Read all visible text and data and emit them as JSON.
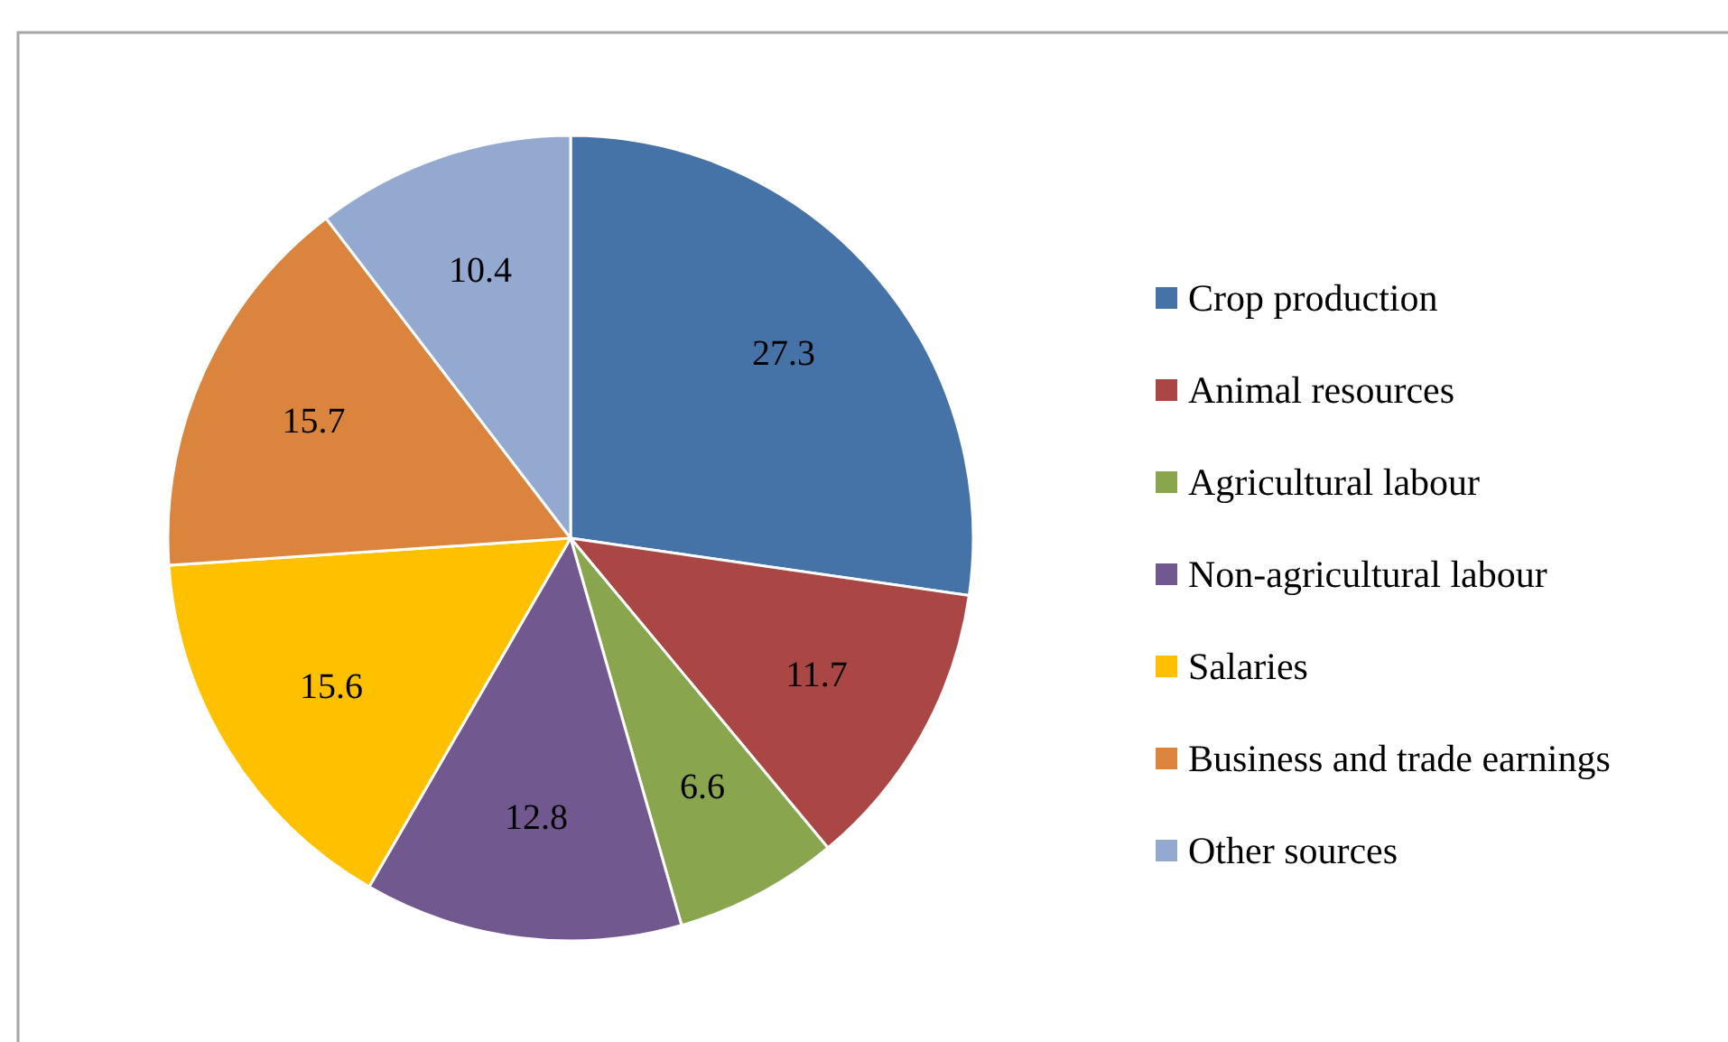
{
  "chart_data": {
    "type": "pie",
    "categories": [
      "Crop production",
      "Animal resources",
      "Agricultural labour",
      "Non-agricultural labour",
      "Salaries",
      "Business and trade earnings",
      "Other sources"
    ],
    "values": [
      27.3,
      11.7,
      6.6,
      12.8,
      15.6,
      15.7,
      10.4
    ],
    "colors": [
      "#4572a7",
      "#aa4643",
      "#89a54e",
      "#71588f",
      "#ffc000",
      "#db843d",
      "#93a9cf"
    ],
    "data_labels": true,
    "legend": "right"
  }
}
